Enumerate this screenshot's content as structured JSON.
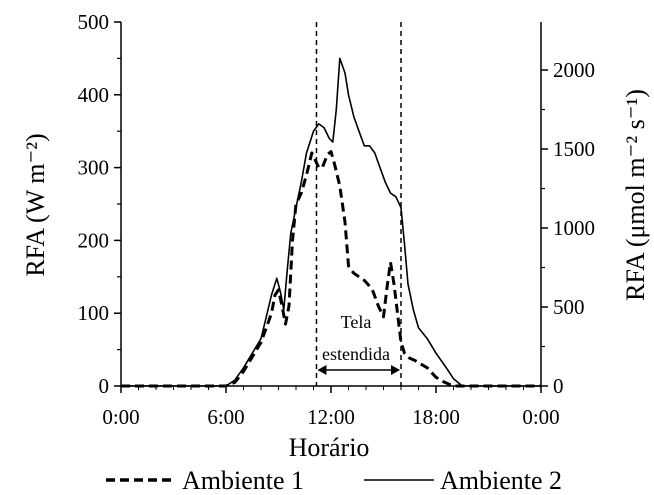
{
  "chart_data": {
    "type": "line",
    "xlabel": "Horário",
    "ylabel": "RFA (W m⁻²)",
    "y2label": "RFA (μmol m⁻² s⁻¹)",
    "x_ticks": [
      "0:00",
      "6:00",
      "12:00",
      "18:00",
      "0:00"
    ],
    "x_tick_hours": [
      0,
      6,
      12,
      18,
      24
    ],
    "xlim": [
      0,
      24
    ],
    "ylim": [
      0,
      500
    ],
    "y_ticks": [
      0,
      100,
      200,
      300,
      400,
      500
    ],
    "y2lim": [
      0,
      2304
    ],
    "y2_ticks": [
      0,
      500,
      1000,
      1500,
      2000
    ],
    "grid": false,
    "legend_position": "bottom",
    "vlines_hours": [
      11.17,
      16.0
    ],
    "annotation": {
      "line1": "Tela",
      "line2": "estendida",
      "span_hours": [
        11.17,
        16.0
      ]
    },
    "series": [
      {
        "name": "Ambiente 1",
        "style": "dashed",
        "color": "#000000",
        "x": [
          0,
          6.0,
          6.5,
          7.0,
          7.5,
          8.0,
          8.3,
          8.6,
          8.8,
          9.0,
          9.2,
          9.4,
          9.6,
          9.8,
          10.0,
          10.3,
          10.6,
          10.9,
          11.1,
          11.3,
          11.5,
          11.8,
          12.0,
          12.2,
          12.5,
          12.8,
          13.0,
          13.3,
          13.6,
          13.9,
          14.1,
          14.4,
          14.7,
          15.0,
          15.2,
          15.4,
          15.6,
          15.8,
          16.0,
          16.2,
          16.5,
          16.8,
          17.0,
          17.5,
          18.0,
          18.5,
          19.0,
          19.3,
          24
        ],
        "y": [
          0,
          0,
          5,
          20,
          40,
          60,
          80,
          100,
          125,
          132,
          110,
          85,
          110,
          200,
          250,
          265,
          290,
          320,
          310,
          300,
          300,
          318,
          322,
          305,
          275,
          225,
          165,
          155,
          150,
          145,
          140,
          130,
          110,
          95,
          135,
          170,
          140,
          100,
          60,
          45,
          38,
          35,
          32,
          25,
          12,
          5,
          0,
          0,
          0
        ]
      },
      {
        "name": "Ambiente 2",
        "style": "solid",
        "color": "#000000",
        "x": [
          0,
          6.0,
          6.5,
          7.0,
          7.5,
          8.0,
          8.3,
          8.6,
          8.9,
          9.1,
          9.3,
          9.5,
          9.7,
          10.0,
          10.3,
          10.6,
          11.0,
          11.3,
          11.6,
          11.9,
          12.1,
          12.3,
          12.5,
          12.8,
          13.0,
          13.3,
          13.6,
          13.9,
          14.2,
          14.5,
          14.8,
          15.1,
          15.4,
          15.7,
          16.0,
          16.2,
          16.4,
          16.7,
          17.0,
          17.5,
          18.0,
          18.5,
          19.0,
          19.5,
          24
        ],
        "y": [
          0,
          0,
          8,
          25,
          45,
          65,
          95,
          125,
          148,
          130,
          105,
          160,
          210,
          245,
          280,
          320,
          350,
          360,
          355,
          340,
          335,
          380,
          450,
          430,
          400,
          370,
          350,
          330,
          330,
          320,
          300,
          280,
          265,
          260,
          245,
          195,
          140,
          105,
          80,
          65,
          45,
          28,
          10,
          0,
          0
        ]
      }
    ]
  }
}
